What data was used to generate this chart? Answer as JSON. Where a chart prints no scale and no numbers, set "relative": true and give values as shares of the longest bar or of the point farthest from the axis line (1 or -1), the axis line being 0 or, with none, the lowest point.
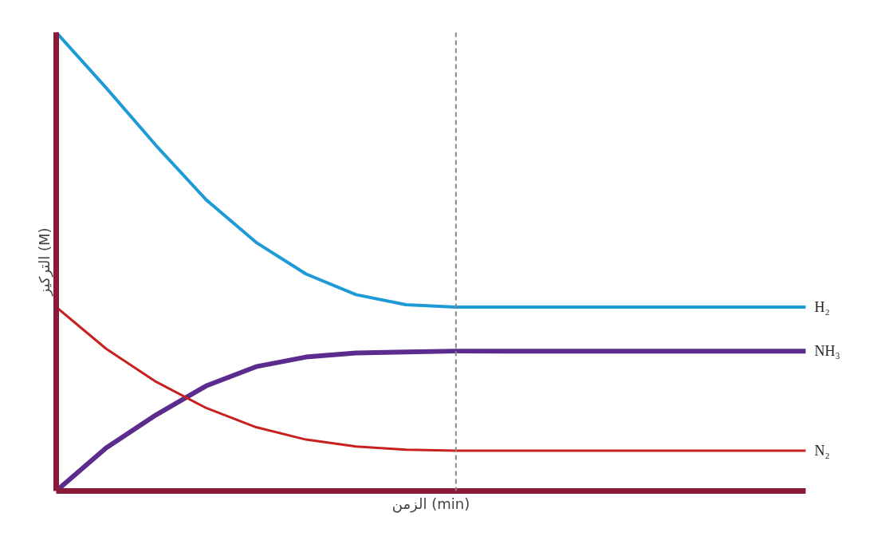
{
  "chart_data": {
    "type": "line",
    "relative": true,
    "xlabel": "الزمن (min)",
    "ylabel": "التركيز (M)",
    "categories": [
      null,
      null,
      null,
      null,
      null,
      null,
      null,
      null,
      null,
      null,
      null,
      null,
      null,
      null,
      null,
      null
    ],
    "series": [
      {
        "name": "H₂",
        "color": "#1e9ad6",
        "values": [
          1.0,
          0.879,
          0.753,
          0.635,
          0.542,
          0.473,
          0.428,
          0.406,
          0.401,
          0.401,
          0.401,
          0.401,
          0.401,
          0.401,
          0.401,
          0.401
        ]
      },
      {
        "name": "NH₃",
        "color": "#5b2c8e",
        "values": [
          0,
          0.094,
          0.166,
          0.229,
          0.271,
          0.292,
          0.301,
          0.303,
          0.305,
          0.305,
          0.305,
          0.305,
          0.305,
          0.305,
          0.305,
          0.305
        ]
      },
      {
        "name": "N₂",
        "color": "#c8201e",
        "values": [
          0.401,
          0.31,
          0.238,
          0.181,
          0.139,
          0.112,
          0.097,
          0.09,
          0.088,
          0.088,
          0.088,
          0.088,
          0.088,
          0.088,
          0.088,
          0.088
        ]
      }
    ]
  }
}
